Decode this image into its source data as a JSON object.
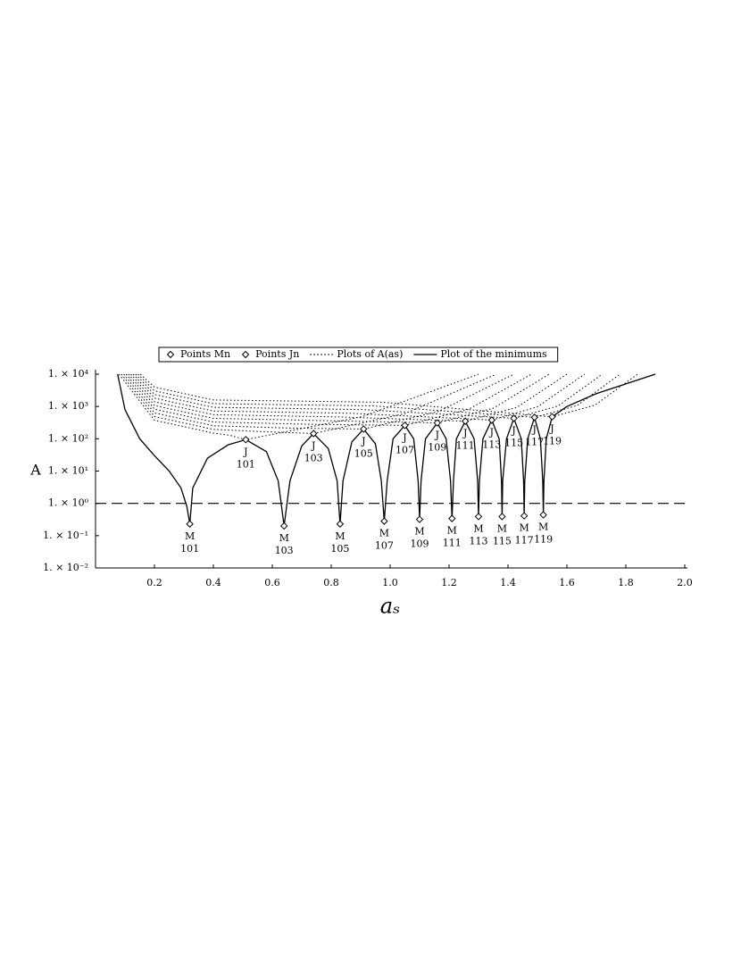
{
  "chart_data": {
    "type": "line",
    "x_label": "aₛ",
    "y_label": "A",
    "xlim": [
      0,
      2
    ],
    "ylim": [
      0.01,
      10000
    ],
    "log_y": true,
    "legend": "top",
    "hline": 1,
    "xticks": [
      0.2,
      0.4,
      0.6,
      0.8,
      {
        "value": 1,
        "label": "1.0"
      },
      1.2,
      1.4,
      1.6,
      1.8,
      {
        "value": 2,
        "label": "2.0"
      }
    ],
    "yticks": [
      {
        "value": 0.01,
        "label": "1. × 10⁻²"
      },
      {
        "value": 0.1,
        "label": "1. × 10⁻¹"
      },
      {
        "value": 1,
        "label": "1. × 10⁰"
      },
      {
        "value": 10,
        "label": "1. × 10¹"
      },
      {
        "value": 100,
        "label": "1. × 10²"
      },
      {
        "value": 1000,
        "label": "1. × 10³"
      },
      {
        "value": 10000,
        "label": "1. × 10⁴"
      }
    ],
    "series": [
      {
        "name": "Points Mn",
        "color": "#000000",
        "marker": "diamond",
        "letter": "M",
        "x": [
          0.32,
          0.64,
          0.83,
          0.98,
          1.1,
          1.21,
          1.3,
          1.38,
          1.455,
          1.52
        ],
        "values": [
          0.23,
          0.2,
          0.23,
          0.28,
          0.32,
          0.34,
          0.39,
          0.39,
          0.41,
          0.44
        ],
        "labels": [
          "101",
          "103",
          "105",
          "107",
          "109",
          "111",
          "113",
          "115",
          "117",
          "119"
        ]
      },
      {
        "name": "Points Jn",
        "color": "#000000",
        "marker": "diamond",
        "letter": "J",
        "x": [
          0.51,
          0.74,
          0.91,
          1.05,
          1.16,
          1.255,
          1.345,
          1.42,
          1.49,
          1.55
        ],
        "values": [
          94,
          145,
          200,
          260,
          310,
          350,
          380,
          430,
          460,
          480
        ],
        "labels": [
          "101",
          "103",
          "105",
          "107",
          "109",
          "111",
          "113",
          "115",
          "117",
          "119"
        ]
      },
      {
        "name": "Plots of A(as)",
        "color": "#000000",
        "line": "dotted",
        "x": [
          0.08,
          0.2,
          0.4,
          0.455,
          0.51,
          0.905,
          1.3,
          null,
          0.088,
          0.2,
          0.4,
          0.57,
          0.74,
          1.05,
          1.36,
          null,
          0.096,
          0.2,
          0.4,
          0.655,
          0.91,
          1.165,
          1.42,
          null,
          0.104,
          0.2,
          0.4,
          0.725,
          1.05,
          1.265,
          1.48,
          null,
          0.112,
          0.2,
          0.4,
          0.78,
          1.16,
          1.35,
          1.54,
          null,
          0.12,
          0.2,
          0.4,
          0.83,
          1.255,
          1.43,
          1.6,
          null,
          0.128,
          0.2,
          0.4,
          0.87,
          1.345,
          1.5,
          1.66,
          null,
          0.136,
          0.2,
          0.4,
          0.91,
          1.42,
          1.57,
          1.72,
          null,
          0.144,
          0.2,
          0.4,
          0.945,
          1.49,
          1.635,
          1.78,
          null,
          0.152,
          0.2,
          0.4,
          0.975,
          1.55,
          1.695,
          1.84
        ],
        "values": [
          10000,
          375,
          150,
          128,
          94,
          485,
          10000,
          null,
          10000,
          488,
          195,
          166,
          145,
          602,
          10000,
          null,
          10000,
          633,
          253,
          215,
          200,
          707,
          10000,
          null,
          10000,
          825,
          330,
          281,
          260,
          806,
          10000,
          null,
          10000,
          1070,
          428,
          364,
          310,
          880,
          10000,
          null,
          10000,
          1393,
          557,
          473,
          350,
          935,
          10000,
          null,
          10000,
          1810,
          724,
          615,
          380,
          975,
          10000,
          null,
          10000,
          2353,
          941,
          800,
          430,
          1037,
          10000,
          null,
          10000,
          3058,
          1223,
          1040,
          460,
          1072,
          10000,
          null,
          10000,
          3975,
          1590,
          1352,
          480,
          1096,
          10000
        ]
      },
      {
        "name": "Plot of the minimums",
        "color": "#000000",
        "line": "solid",
        "x": [
          0.075,
          0.1,
          0.15,
          0.2,
          0.25,
          0.29,
          0.31,
          0.32,
          0.33,
          0.38,
          0.45,
          0.51,
          0.58,
          0.62,
          0.64,
          0.66,
          0.7,
          0.74,
          0.79,
          0.82,
          0.83,
          0.84,
          0.87,
          0.91,
          0.95,
          0.97,
          0.98,
          0.99,
          1.01,
          1.05,
          1.08,
          1.095,
          1.1,
          1.105,
          1.12,
          1.16,
          1.19,
          1.205,
          1.21,
          1.215,
          1.225,
          1.255,
          1.285,
          1.297,
          1.3,
          1.303,
          1.315,
          1.345,
          1.37,
          1.378,
          1.38,
          1.382,
          1.395,
          1.42,
          1.445,
          1.453,
          1.455,
          1.457,
          1.467,
          1.49,
          1.51,
          1.518,
          1.52,
          1.522,
          1.53,
          1.55,
          1.6,
          1.7,
          1.8,
          1.9
        ],
        "values": [
          10000,
          800,
          100,
          30,
          10,
          3,
          0.8,
          0.23,
          3,
          25,
          65,
          94,
          40,
          5,
          0.2,
          5,
          60,
          145,
          50,
          5,
          0.23,
          5,
          80,
          200,
          70,
          5,
          0.28,
          5,
          100,
          260,
          100,
          5,
          0.32,
          5,
          100,
          310,
          100,
          5,
          0.34,
          5,
          100,
          350,
          100,
          5,
          0.39,
          5,
          100,
          380,
          100,
          5,
          0.39,
          5,
          100,
          430,
          100,
          5,
          0.41,
          5,
          100,
          460,
          100,
          5,
          0.44,
          5,
          100,
          480,
          1000,
          2500,
          5000,
          10000
        ]
      }
    ]
  }
}
